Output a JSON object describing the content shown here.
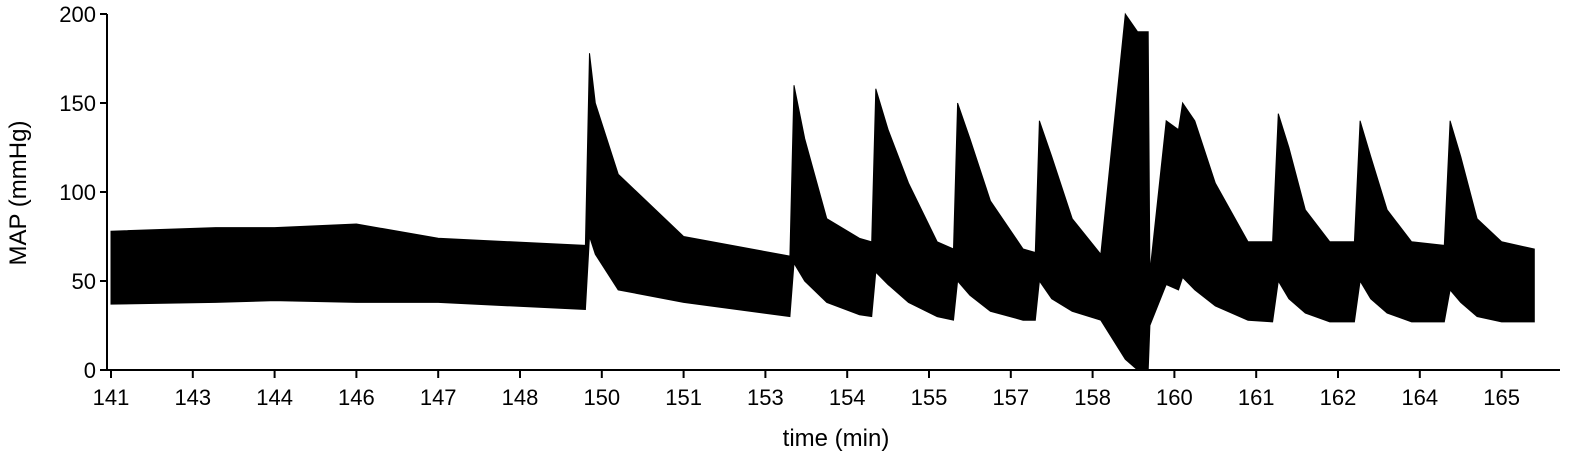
{
  "chart_data": {
    "type": "area",
    "title": "",
    "xlabel": "time (min)",
    "ylabel": "MAP (mmHg)",
    "ylim": [
      0,
      200
    ],
    "y_ticks": [
      0,
      50,
      100,
      150,
      200
    ],
    "x_tick_labels": [
      "141",
      "143",
      "144",
      "146",
      "147",
      "148",
      "150",
      "151",
      "153",
      "154",
      "155",
      "157",
      "158",
      "160",
      "161",
      "162",
      "164",
      "165"
    ],
    "grid": false,
    "legend": "none",
    "colors": {
      "fill": "#000000",
      "axis": "#000000"
    },
    "series": [
      {
        "x_tick_index": [
          0,
          1.28,
          2,
          3,
          4,
          5.8,
          5.85,
          5.92,
          6.2,
          7,
          8.3,
          8.35,
          8.48,
          8.75,
          9.15,
          9.3,
          9.35,
          9.5,
          9.75,
          10.1,
          10.3,
          10.35,
          10.5,
          10.75,
          11.15,
          11.3,
          11.35,
          11.5,
          11.75,
          12.1,
          12.4,
          12.55,
          12.68,
          12.7,
          12.9,
          13.05,
          13.1,
          13.25,
          13.5,
          13.9,
          14.2,
          14.27,
          14.4,
          14.6,
          14.9,
          15.2,
          15.27,
          15.4,
          15.6,
          15.9,
          16.3,
          16.37,
          16.5,
          16.7,
          17.0,
          17.4
        ],
        "upper": [
          78,
          80,
          80,
          82,
          74,
          70,
          178,
          150,
          110,
          75,
          64,
          160,
          130,
          85,
          74,
          72,
          158,
          135,
          105,
          72,
          68,
          150,
          130,
          95,
          68,
          66,
          140,
          120,
          85,
          65,
          200,
          190,
          190,
          55,
          140,
          135,
          150,
          140,
          105,
          72,
          72,
          144,
          125,
          90,
          72,
          72,
          140,
          120,
          90,
          72,
          70,
          140,
          120,
          85,
          72,
          68
        ],
        "lower": [
          37,
          38,
          39,
          38,
          38,
          34,
          75,
          65,
          45,
          38,
          30,
          60,
          50,
          38,
          31,
          30,
          55,
          48,
          38,
          30,
          28,
          50,
          42,
          33,
          28,
          28,
          50,
          40,
          33,
          28,
          6,
          0,
          0,
          25,
          48,
          45,
          52,
          45,
          36,
          28,
          27,
          50,
          40,
          32,
          27,
          27,
          50,
          40,
          32,
          27,
          27,
          45,
          38,
          30,
          27,
          27
        ]
      }
    ]
  }
}
